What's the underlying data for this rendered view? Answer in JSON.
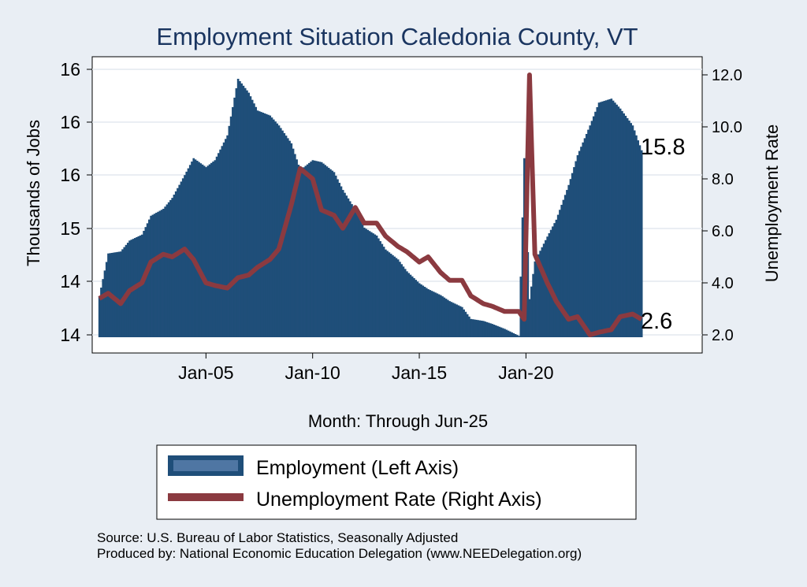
{
  "chart_data": {
    "type": "bar+line",
    "title": "Employment Situation Caledonia  County, VT",
    "xlabel": "Month: Through Jun-25",
    "ylabel_left": "Thousands of Jobs",
    "ylabel_right": "Unemployment Rate",
    "x_range": [
      "Jan-00",
      "Jun-25"
    ],
    "x_ticks": [
      "Jan-05",
      "Jan-10",
      "Jan-15",
      "Jan-20"
    ],
    "y_left_ticks": [
      "14",
      "14",
      "15",
      "16",
      "16",
      "16"
    ],
    "y_left_range": [
      13.9,
      16.5
    ],
    "y_right_ticks": [
      "2.0",
      "4.0",
      "6.0",
      "8.0",
      "10.0",
      "12.0"
    ],
    "y_right_range": [
      2.0,
      12.0
    ],
    "grid": true,
    "end_labels": {
      "employment": "15.8",
      "unemployment": "2.6"
    },
    "series": [
      {
        "name": "Employment (Left Axis)",
        "kind": "bar",
        "color": "#1f4e79",
        "points": [
          [
            "2000-01",
            14.33
          ],
          [
            "2000-06",
            14.76
          ],
          [
            "2001-01",
            14.78
          ],
          [
            "2001-06",
            14.89
          ],
          [
            "2002-01",
            14.95
          ],
          [
            "2002-06",
            15.14
          ],
          [
            "2003-01",
            15.21
          ],
          [
            "2003-06",
            15.32
          ],
          [
            "2004-01",
            15.55
          ],
          [
            "2004-06",
            15.72
          ],
          [
            "2005-01",
            15.63
          ],
          [
            "2005-06",
            15.7
          ],
          [
            "2006-01",
            15.95
          ],
          [
            "2006-07",
            16.52
          ],
          [
            "2007-01",
            16.38
          ],
          [
            "2007-06",
            16.2
          ],
          [
            "2008-01",
            16.15
          ],
          [
            "2008-06",
            16.05
          ],
          [
            "2009-01",
            15.87
          ],
          [
            "2009-06",
            15.6
          ],
          [
            "2010-01",
            15.7
          ],
          [
            "2010-06",
            15.68
          ],
          [
            "2011-01",
            15.58
          ],
          [
            "2011-06",
            15.4
          ],
          [
            "2012-01",
            15.2
          ],
          [
            "2012-06",
            15.02
          ],
          [
            "2013-01",
            14.94
          ],
          [
            "2013-06",
            14.8
          ],
          [
            "2014-01",
            14.7
          ],
          [
            "2014-06",
            14.58
          ],
          [
            "2015-01",
            14.46
          ],
          [
            "2015-06",
            14.4
          ],
          [
            "2016-01",
            14.34
          ],
          [
            "2016-06",
            14.28
          ],
          [
            "2017-01",
            14.22
          ],
          [
            "2017-06",
            14.1
          ],
          [
            "2018-01",
            14.08
          ],
          [
            "2018-06",
            14.05
          ],
          [
            "2019-01",
            14.0
          ],
          [
            "2019-09",
            13.93
          ],
          [
            "2019-12",
            15.72
          ],
          [
            "2020-03",
            14.3
          ],
          [
            "2020-06",
            14.68
          ],
          [
            "2021-01",
            14.93
          ],
          [
            "2021-06",
            15.1
          ],
          [
            "2022-01",
            15.45
          ],
          [
            "2022-06",
            15.75
          ],
          [
            "2023-01",
            16.05
          ],
          [
            "2023-06",
            16.28
          ],
          [
            "2024-01",
            16.32
          ],
          [
            "2024-06",
            16.22
          ],
          [
            "2025-01",
            16.05
          ],
          [
            "2025-06",
            15.8
          ]
        ]
      },
      {
        "name": "Unemployment Rate (Right Axis)",
        "kind": "line",
        "color": "#8b3a40",
        "points": [
          [
            "2000-01",
            3.4
          ],
          [
            "2000-06",
            3.6
          ],
          [
            "2001-01",
            3.2
          ],
          [
            "2001-06",
            3.7
          ],
          [
            "2002-01",
            4.0
          ],
          [
            "2002-06",
            4.8
          ],
          [
            "2003-01",
            5.1
          ],
          [
            "2003-06",
            5.0
          ],
          [
            "2004-01",
            5.3
          ],
          [
            "2004-06",
            4.9
          ],
          [
            "2005-01",
            4.0
          ],
          [
            "2005-06",
            3.9
          ],
          [
            "2006-01",
            3.8
          ],
          [
            "2006-07",
            4.2
          ],
          [
            "2007-01",
            4.3
          ],
          [
            "2007-06",
            4.6
          ],
          [
            "2008-01",
            4.9
          ],
          [
            "2008-06",
            5.3
          ],
          [
            "2009-01",
            7.0
          ],
          [
            "2009-06",
            8.4
          ],
          [
            "2010-01",
            8.0
          ],
          [
            "2010-06",
            6.8
          ],
          [
            "2011-01",
            6.6
          ],
          [
            "2011-06",
            6.1
          ],
          [
            "2012-01",
            6.9
          ],
          [
            "2012-06",
            6.3
          ],
          [
            "2013-01",
            6.3
          ],
          [
            "2013-06",
            5.8
          ],
          [
            "2014-01",
            5.4
          ],
          [
            "2014-06",
            5.2
          ],
          [
            "2015-01",
            4.8
          ],
          [
            "2015-06",
            5.0
          ],
          [
            "2016-01",
            4.4
          ],
          [
            "2016-06",
            4.1
          ],
          [
            "2017-01",
            4.1
          ],
          [
            "2017-06",
            3.5
          ],
          [
            "2018-01",
            3.2
          ],
          [
            "2018-06",
            3.1
          ],
          [
            "2019-01",
            2.9
          ],
          [
            "2019-09",
            2.9
          ],
          [
            "2019-12",
            2.6
          ],
          [
            "2020-03",
            12.0
          ],
          [
            "2020-06",
            5.1
          ],
          [
            "2021-01",
            4.0
          ],
          [
            "2021-06",
            3.3
          ],
          [
            "2022-01",
            2.6
          ],
          [
            "2022-06",
            2.7
          ],
          [
            "2023-01",
            2.0
          ],
          [
            "2023-06",
            2.1
          ],
          [
            "2024-01",
            2.2
          ],
          [
            "2024-06",
            2.7
          ],
          [
            "2025-01",
            2.8
          ],
          [
            "2025-06",
            2.6
          ]
        ]
      }
    ],
    "source_lines": [
      "Source: U.S. Bureau of Labor Statistics, Seasonally Adjusted",
      "Produced by: National Economic Education Delegation (www.NEEDelegation.org)"
    ]
  }
}
